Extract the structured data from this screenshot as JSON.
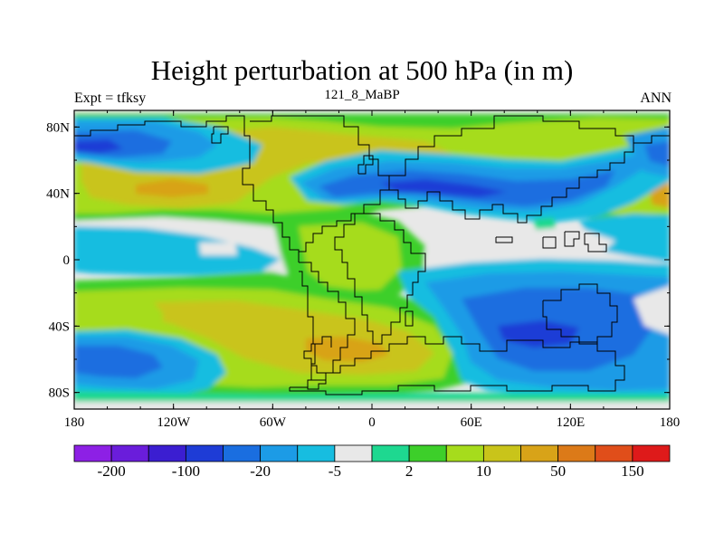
{
  "plot": {
    "title": "Height perturbation at 500 hPa (in m)",
    "experiment_label": "Expt = tfksy",
    "case_label": "121_8_MaBP",
    "season_label": "ANN",
    "variable": "500 hPa height perturbation",
    "units": "m"
  },
  "axes": {
    "x_ticks": [
      "180",
      "120W",
      "60W",
      "0",
      "60E",
      "120E",
      "180"
    ],
    "y_ticks": [
      "80N",
      "40N",
      "0",
      "40S",
      "80S"
    ],
    "x_range": [
      -180,
      180
    ],
    "y_range": [
      -90,
      90
    ]
  },
  "colorbar": {
    "labels": [
      "-200",
      "-100",
      "-20",
      "-5",
      "2",
      "10",
      "50",
      "150"
    ],
    "colors": [
      "#8d20e5",
      "#6a1ddb",
      "#3b1ed1",
      "#1e3cd6",
      "#1a6ee0",
      "#1c9be6",
      "#17bde0",
      "#e8e8e8",
      "#1ed890",
      "#3dcf2a",
      "#a6dc1c",
      "#c9c41a",
      "#d8a318",
      "#dc7a18",
      "#e04e1a",
      "#de1a1a"
    ]
  },
  "field_colors": {
    "lightgray": "#e8e8e8",
    "teal": "#1ed890",
    "green": "#3dcf2a",
    "yellowgreen": "#a6dc1c",
    "olive": "#c9c41a",
    "orange": "#d8a318",
    "darkorange": "#dc7a18",
    "cyan": "#17bde0",
    "lightblue": "#1c9be6",
    "blue": "#1a6ee0",
    "darkblue": "#1e3cd6",
    "indigo": "#3b1ed1"
  }
}
